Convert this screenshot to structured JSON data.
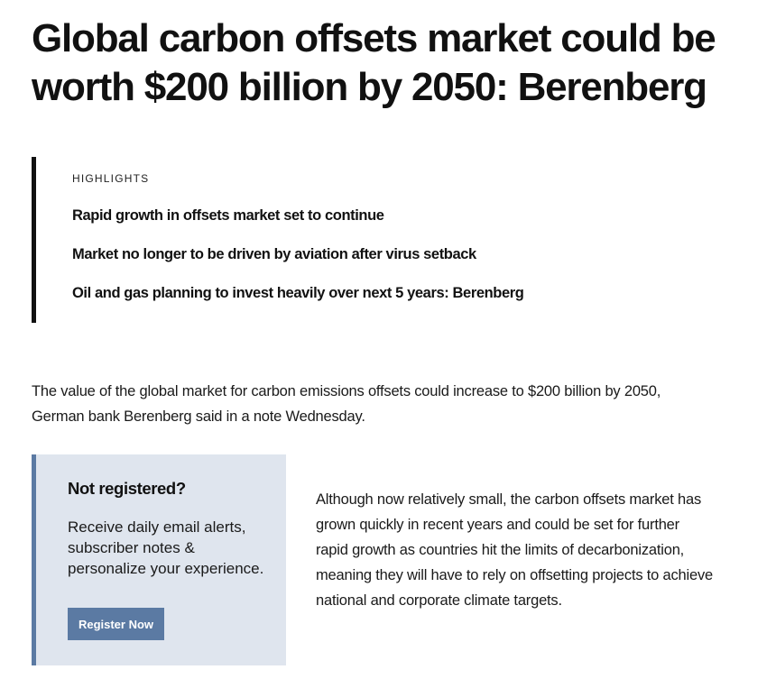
{
  "article": {
    "headline": "Global carbon offsets market could be worth $200 billion by 2050: Berenberg",
    "highlights": {
      "label": "HIGHLIGHTS",
      "items": [
        "Rapid growth in offsets market set to continue",
        "Market no longer to be driven by aviation after virus setback",
        "Oil and gas planning to invest heavily over next 5 years: Berenberg"
      ]
    },
    "lead": "The value of the global market for carbon emissions offsets could increase to $200 billion by 2050, German bank Berenberg said in a note Wednesday.",
    "body": "Although now relatively small, the carbon offsets market has grown quickly in recent years and could be set for further rapid growth as countries hit the limits of decarbonization, meaning they will have to rely on offsetting projects to achieve national and corporate climate targets."
  },
  "promo": {
    "title": "Not registered?",
    "text": "Receive daily email alerts, subscriber notes & personalize your experience.",
    "button_label": "Register Now"
  },
  "colors": {
    "accent": "#5b7aa3",
    "promo_background": "#dfe5ee",
    "text": "#111111"
  }
}
